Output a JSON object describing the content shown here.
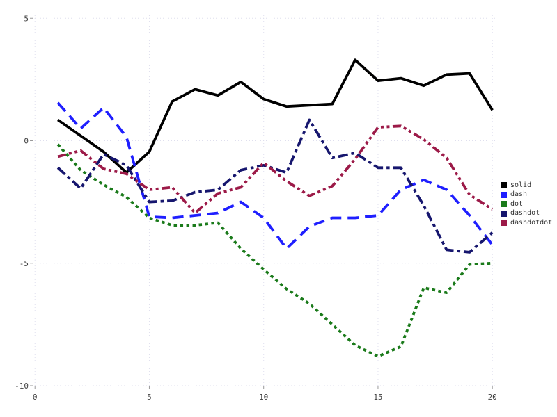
{
  "chart_data": {
    "type": "line",
    "title": "",
    "xlabel": "",
    "ylabel": "",
    "x": [
      1,
      2,
      3,
      4,
      5,
      6,
      7,
      8,
      9,
      10,
      11,
      12,
      13,
      14,
      15,
      16,
      17,
      18,
      19,
      20
    ],
    "series": [
      {
        "name": "solid",
        "color": "#000000",
        "dash": "solid",
        "values": [
          0.85,
          0.2,
          -0.45,
          -1.3,
          -0.45,
          1.6,
          2.1,
          1.85,
          2.4,
          1.7,
          1.4,
          1.45,
          1.5,
          3.3,
          2.45,
          2.55,
          2.25,
          2.7,
          2.75,
          1.25
        ]
      },
      {
        "name": "dash",
        "color": "#1f1fff",
        "dash": "dash",
        "values": [
          1.55,
          0.5,
          1.35,
          0.15,
          -3.1,
          -3.15,
          -3.05,
          -2.95,
          -2.5,
          -3.15,
          -4.4,
          -3.5,
          -3.15,
          -3.15,
          -3.05,
          -2.0,
          -1.6,
          -2.0,
          -3.05,
          -4.25
        ]
      },
      {
        "name": "dot",
        "color": "#1a7a1a",
        "dash": "dot",
        "values": [
          -0.15,
          -1.2,
          -1.8,
          -2.3,
          -3.15,
          -3.45,
          -3.45,
          -3.35,
          -4.4,
          -5.25,
          -6.05,
          -6.65,
          -7.5,
          -8.35,
          -8.8,
          -8.4,
          -6.0,
          -6.2,
          -5.05,
          -5.0
        ]
      },
      {
        "name": "dashdot",
        "color": "#16166e",
        "dash": "dashdot",
        "values": [
          -1.1,
          -1.95,
          -0.55,
          -1.0,
          -2.5,
          -2.45,
          -2.1,
          -2.0,
          -1.2,
          -1.0,
          -1.3,
          0.85,
          -0.7,
          -0.5,
          -1.1,
          -1.1,
          -2.65,
          -4.45,
          -4.55,
          -3.75
        ]
      },
      {
        "name": "dashdotdot",
        "color": "#9c1a48",
        "dash": "dashdotdot",
        "values": [
          -0.65,
          -0.4,
          -1.15,
          -1.35,
          -2.0,
          -1.9,
          -2.95,
          -2.15,
          -1.9,
          -0.9,
          -1.65,
          -2.25,
          -1.85,
          -0.75,
          0.55,
          0.6,
          0.05,
          -0.7,
          -2.2,
          -2.8
        ]
      }
    ],
    "x_ticks": {
      "values": [
        0,
        5,
        10,
        15,
        20
      ],
      "labels": [
        "0",
        "5",
        "10",
        "15",
        "20"
      ]
    },
    "y_ticks": {
      "values": [
        5,
        0,
        -5,
        -10
      ],
      "labels": [
        "5",
        "0",
        "-5",
        "-10"
      ]
    },
    "xlim": [
      0,
      20
    ],
    "ylim": [
      -10,
      5
    ],
    "grid": true,
    "grid_style": "dotted",
    "legend_position": "right-outside",
    "legend": [
      "solid",
      "dash",
      "dot",
      "dashdot",
      "dashdotdot"
    ]
  },
  "colors": {
    "background": "#ffffff",
    "grid": "#dfdfee",
    "tick_mark": "#9a9a9a",
    "tick_text": "#404040",
    "legend_text": "#333333"
  }
}
